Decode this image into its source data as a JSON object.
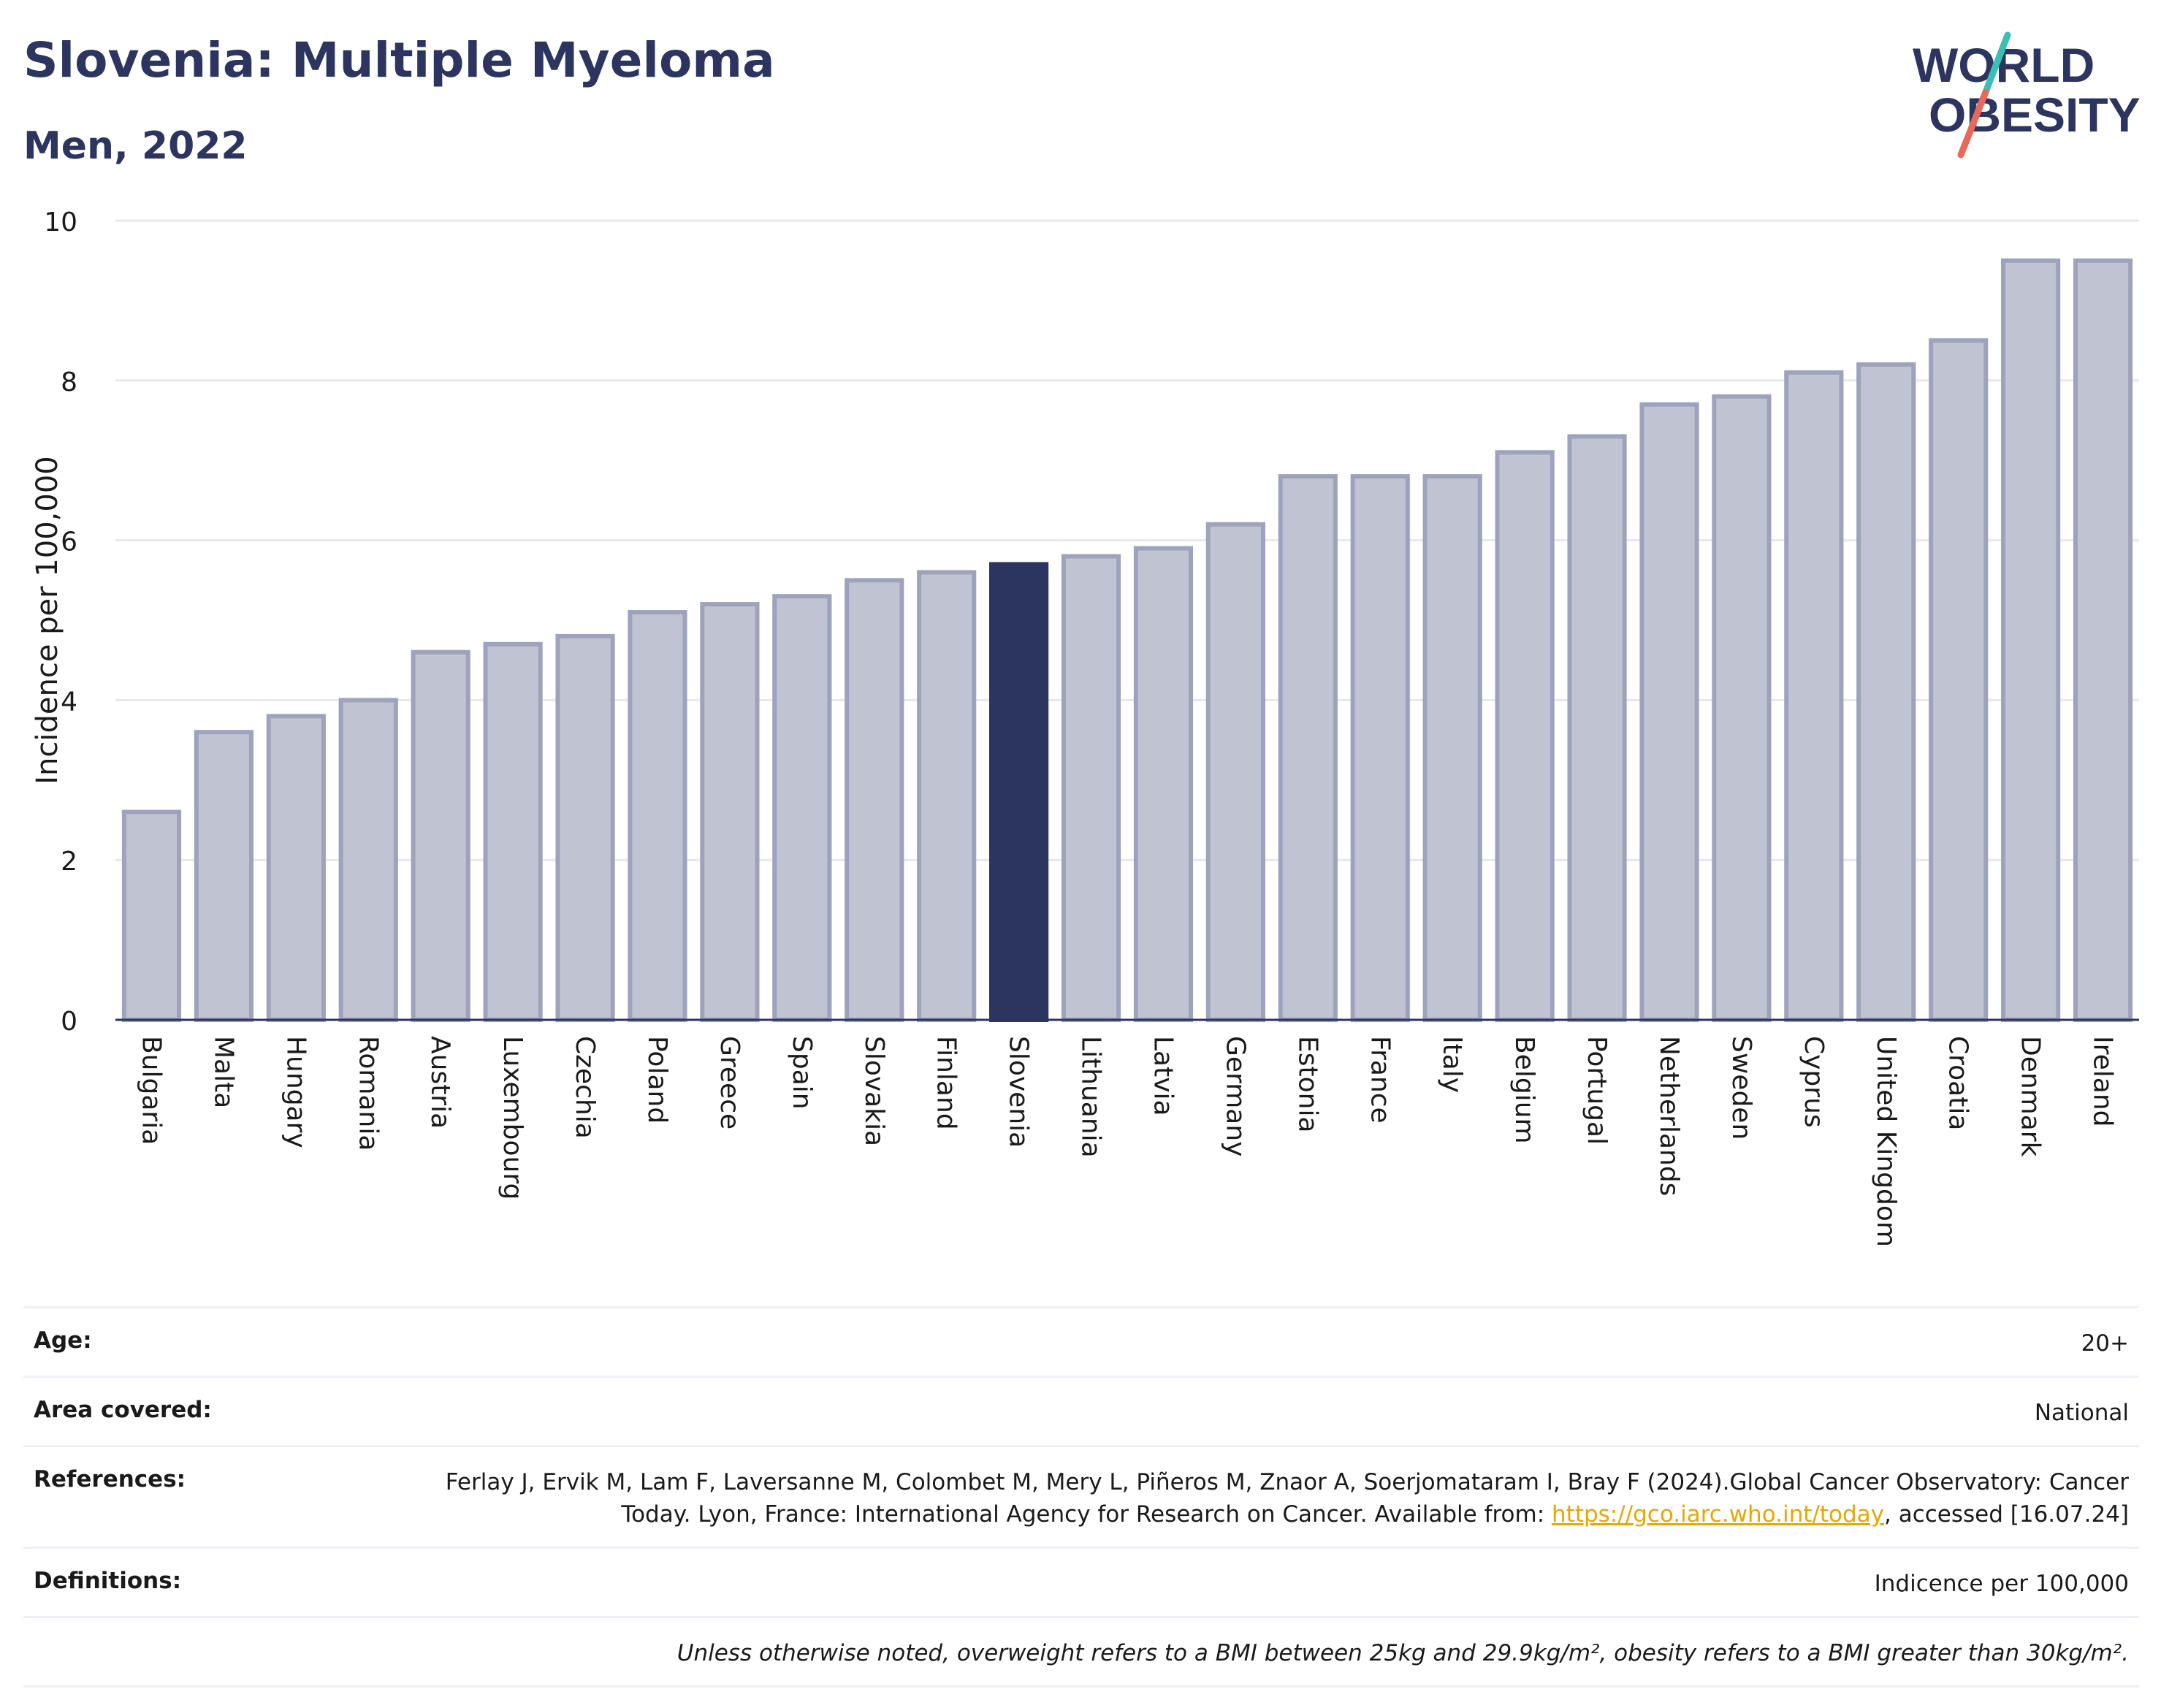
{
  "header": {
    "title": "Slovenia: Multiple Myeloma",
    "subtitle": "Men, 2022",
    "logo": {
      "line1": "WORLD",
      "line2": "OBESITY",
      "colors": {
        "text": "#2b3560",
        "slash_top": "#3bbfb5",
        "slash_bottom": "#e8685a"
      }
    }
  },
  "colors": {
    "bar": "#c0c4d2",
    "bar_border": "#9da3bc",
    "highlight": "#2b3560",
    "grid": "#e6e8ef",
    "axis": "#2b3560"
  },
  "chart_data": {
    "type": "bar",
    "title": "",
    "ylabel": "Incidence per 100,000",
    "xlabel": "",
    "ylim": [
      0,
      10
    ],
    "yticks": [
      0,
      2,
      4,
      6,
      8,
      10
    ],
    "grid": true,
    "highlight": "Slovenia",
    "categories": [
      "Bulgaria",
      "Malta",
      "Hungary",
      "Romania",
      "Austria",
      "Luxembourg",
      "Czechia",
      "Poland",
      "Greece",
      "Spain",
      "Slovakia",
      "Finland",
      "Slovenia",
      "Lithuania",
      "Latvia",
      "Germany",
      "Estonia",
      "France",
      "Italy",
      "Belgium",
      "Portugal",
      "Netherlands",
      "Sweden",
      "Cyprus",
      "United Kingdom",
      "Croatia",
      "Denmark",
      "Ireland"
    ],
    "values": [
      2.6,
      3.6,
      3.8,
      4.0,
      4.6,
      4.7,
      4.8,
      5.1,
      5.2,
      5.3,
      5.5,
      5.6,
      5.7,
      5.8,
      5.9,
      6.2,
      6.8,
      6.8,
      6.8,
      7.1,
      7.3,
      7.7,
      7.8,
      8.1,
      8.2,
      8.5,
      9.5,
      9.5
    ]
  },
  "meta": {
    "age": {
      "label": "Age:",
      "value": "20+"
    },
    "area": {
      "label": "Area covered:",
      "value": "National"
    },
    "references": {
      "label": "References:",
      "text_before": "Ferlay J, Ervik M, Lam F, Laversanne M, Colombet M, Mery L, Piñeros M, Znaor A, Soerjomataram I, Bray F (2024).Global Cancer Observatory: Cancer Today. Lyon, France: International Agency for Research on Cancer. Available from: ",
      "link": "https://gco.iarc.who.int/today",
      "text_after": ", accessed [16.07.24]"
    },
    "definitions": {
      "label": "Definitions:",
      "value": "Indicence per 100,000"
    },
    "note": "Unless otherwise noted, overweight refers to a BMI between 25kg and 29.9kg/m², obesity refers to a BMI greater than 30kg/m²."
  }
}
